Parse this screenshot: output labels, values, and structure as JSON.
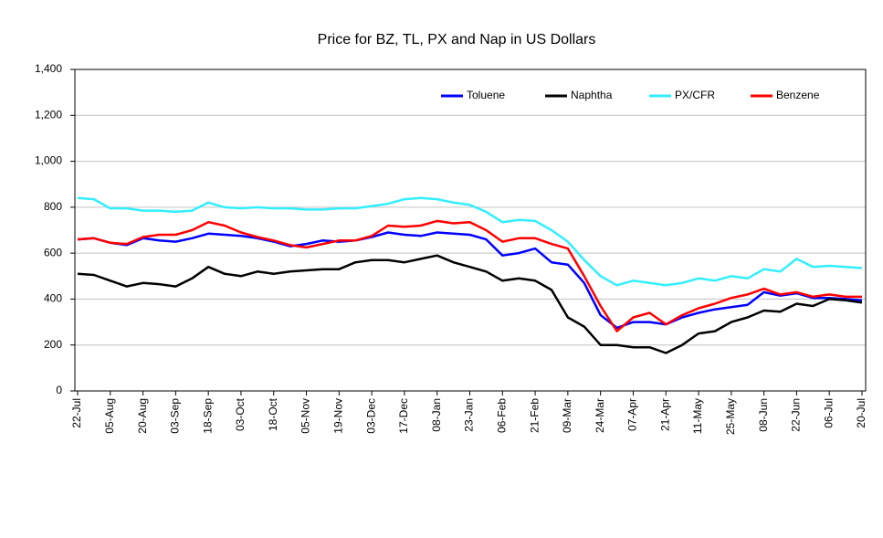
{
  "chart_data": {
    "type": "line",
    "title": "Price for BZ, TL, PX and Nap in US Dollars",
    "categories": [
      "22-Jul",
      null,
      "05-Aug",
      null,
      "20-Aug",
      null,
      "03-Sep",
      null,
      "18-Sep",
      null,
      "03-Oct",
      null,
      "18-Oct",
      null,
      "05-Nov",
      null,
      "19-Nov",
      null,
      "03-Dec",
      null,
      "17-Dec",
      null,
      "08-Jan",
      null,
      "23-Jan",
      null,
      "06-Feb",
      null,
      "21-Feb",
      null,
      "09-Mar",
      null,
      "24-Mar",
      null,
      "07-Apr",
      null,
      "21-Apr",
      null,
      "11-May",
      null,
      "25-May",
      null,
      "08-Jun",
      null,
      "22-Jun",
      null,
      "06-Jul",
      null,
      "20-Jul"
    ],
    "series": [
      {
        "name": "Toluene",
        "color": "#0000ff",
        "values": [
          660,
          665,
          645,
          635,
          665,
          655,
          650,
          665,
          685,
          680,
          675,
          665,
          650,
          630,
          640,
          655,
          650,
          655,
          670,
          690,
          680,
          675,
          690,
          685,
          680,
          660,
          590,
          600,
          620,
          560,
          550,
          470,
          330,
          275,
          300,
          300,
          290,
          320,
          340,
          355,
          365,
          375,
          430,
          415,
          425,
          405,
          405,
          400,
          395
        ]
      },
      {
        "name": "Naphtha",
        "color": "#000000",
        "values": [
          510,
          505,
          480,
          455,
          470,
          465,
          455,
          490,
          540,
          510,
          500,
          520,
          510,
          520,
          525,
          530,
          530,
          560,
          570,
          570,
          560,
          575,
          590,
          560,
          540,
          520,
          480,
          490,
          480,
          440,
          320,
          280,
          200,
          200,
          190,
          190,
          165,
          200,
          250,
          260,
          300,
          320,
          350,
          345,
          380,
          370,
          400,
          395,
          385
        ]
      },
      {
        "name": "PX/CFR",
        "color": "#33eeff",
        "values": [
          840,
          835,
          795,
          795,
          785,
          785,
          780,
          785,
          820,
          800,
          795,
          800,
          795,
          795,
          790,
          790,
          795,
          795,
          805,
          815,
          835,
          840,
          835,
          820,
          810,
          780,
          735,
          745,
          740,
          700,
          650,
          570,
          500,
          460,
          480,
          470,
          460,
          470,
          490,
          480,
          500,
          490,
          530,
          520,
          575,
          540,
          545,
          540,
          535
        ]
      },
      {
        "name": "Benzene",
        "color": "#ff0000",
        "values": [
          660,
          665,
          645,
          640,
          670,
          680,
          680,
          700,
          735,
          720,
          690,
          670,
          655,
          635,
          625,
          640,
          655,
          655,
          675,
          720,
          715,
          720,
          740,
          730,
          735,
          700,
          650,
          665,
          665,
          640,
          620,
          500,
          370,
          260,
          320,
          340,
          290,
          330,
          360,
          380,
          405,
          420,
          445,
          420,
          430,
          410,
          420,
          410,
          410
        ]
      }
    ],
    "ylim": [
      0,
      1400
    ],
    "yticks": [
      0,
      200,
      400,
      600,
      800,
      {
        "value": 1000,
        "label": "1,000"
      },
      {
        "value": 1200,
        "label": "1,200"
      },
      {
        "value": 1400,
        "label": "1,400"
      }
    ],
    "grid": true
  }
}
